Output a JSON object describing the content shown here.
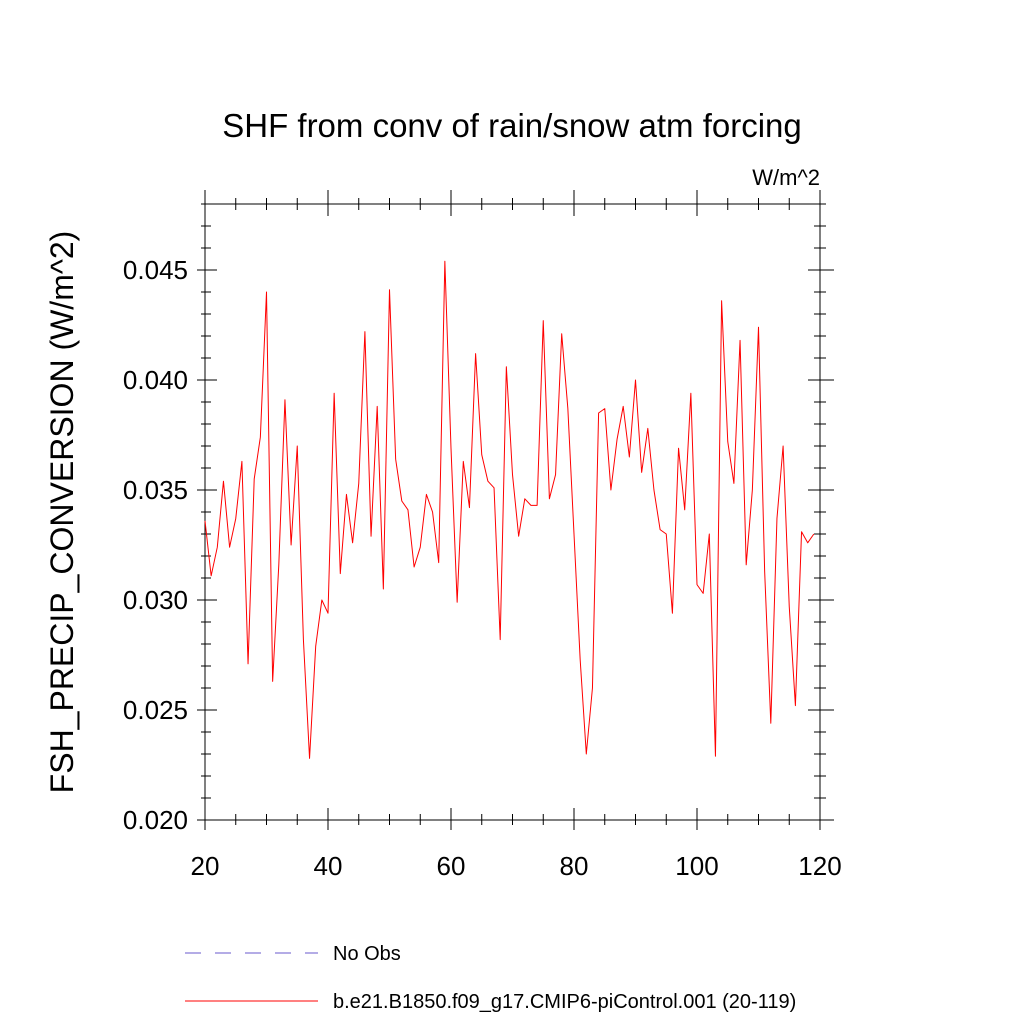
{
  "chart_data": {
    "type": "line",
    "title": "SHF from conv of rain/snow atm forcing",
    "units_label": "W/m^2",
    "xlabel": "",
    "ylabel": "FSH_PRECIP_CONVERSION  (W/m^2)",
    "xlim": [
      20,
      120
    ],
    "ylim": [
      0.02,
      0.048
    ],
    "x_ticks": [
      20,
      40,
      60,
      80,
      100,
      120
    ],
    "x_tick_labels": [
      "20",
      "40",
      "60",
      "80",
      "100",
      "120"
    ],
    "y_ticks": [
      0.02,
      0.025,
      0.03,
      0.035,
      0.04,
      0.045
    ],
    "y_tick_labels": [
      "0.020",
      "0.025",
      "0.030",
      "0.035",
      "0.040",
      "0.045"
    ],
    "grid": false,
    "series": [
      {
        "name": "b.e21.B1850.f09_g17.CMIP6-piControl.001 (20-119)",
        "color": "#ff0000",
        "x_start": 20,
        "values": [
          0.0336,
          0.0311,
          0.0324,
          0.0354,
          0.0324,
          0.0337,
          0.0363,
          0.0271,
          0.0355,
          0.0374,
          0.044,
          0.0263,
          0.0316,
          0.0391,
          0.0325,
          0.037,
          0.0282,
          0.0228,
          0.0279,
          0.03,
          0.0294,
          0.0394,
          0.0312,
          0.0348,
          0.0326,
          0.0353,
          0.0422,
          0.0329,
          0.0388,
          0.0305,
          0.0441,
          0.0364,
          0.0345,
          0.0341,
          0.0315,
          0.0324,
          0.0348,
          0.034,
          0.0317,
          0.0454,
          0.0369,
          0.0299,
          0.0363,
          0.0342,
          0.0412,
          0.0366,
          0.0354,
          0.0351,
          0.0282,
          0.0406,
          0.0357,
          0.0329,
          0.0346,
          0.0343,
          0.0343,
          0.0427,
          0.0346,
          0.0357,
          0.0421,
          0.0387,
          0.033,
          0.0273,
          0.023,
          0.026,
          0.0385,
          0.0387,
          0.035,
          0.0373,
          0.0388,
          0.0365,
          0.04,
          0.0358,
          0.0378,
          0.035,
          0.0332,
          0.033,
          0.0294,
          0.0369,
          0.0341,
          0.0394,
          0.0307,
          0.0303,
          0.033,
          0.0229,
          0.0436,
          0.0372,
          0.0353,
          0.0418,
          0.0316,
          0.035,
          0.0424,
          0.0313,
          0.0244,
          0.0337,
          0.037,
          0.0297,
          0.0252,
          0.0331,
          0.0326,
          0.033
        ]
      }
    ],
    "legend_position": "bottom",
    "legend": [
      {
        "label": "No Obs",
        "style": "dashed",
        "color": "#6a5acd"
      },
      {
        "label": "b.e21.B1850.f09_g17.CMIP6-piControl.001 (20-119)",
        "style": "solid",
        "color": "#ff0000"
      }
    ]
  }
}
